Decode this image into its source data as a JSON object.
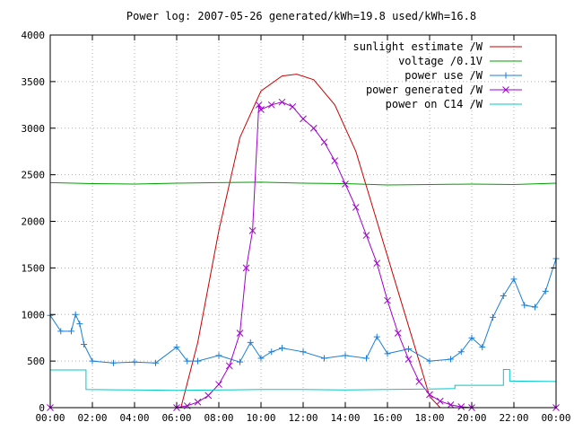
{
  "chart_data": {
    "type": "line",
    "title": "Power log: 2007-05-26 generated/kWh=19.8 used/kWh=16.8",
    "xlabel": "",
    "ylabel": "",
    "xlim": [
      0,
      24
    ],
    "ylim": [
      0,
      4000
    ],
    "x_ticks": [
      "00:00",
      "02:00",
      "04:00",
      "06:00",
      "08:00",
      "10:00",
      "12:00",
      "14:00",
      "16:00",
      "18:00",
      "20:00",
      "22:00",
      "00:00"
    ],
    "y_ticks": [
      0,
      500,
      1000,
      1500,
      2000,
      2500,
      3000,
      3500,
      4000
    ],
    "grid": true,
    "legend_position": "top-right",
    "series": [
      {
        "name": "sunlight estimate /W",
        "color": "#cc0000",
        "marker": "none",
        "x": [
          6.2,
          7.0,
          8.0,
          9.0,
          10.0,
          11.0,
          11.7,
          12.5,
          13.5,
          14.5,
          15.5,
          16.5,
          17.5,
          18.0,
          18.5
        ],
        "y": [
          0,
          700,
          1900,
          2900,
          3400,
          3560,
          3580,
          3520,
          3250,
          2750,
          2000,
          1250,
          500,
          120,
          0
        ]
      },
      {
        "name": "voltage /0.1V",
        "color": "#00a000",
        "marker": "none",
        "x": [
          0,
          2,
          4,
          6,
          8,
          10,
          12,
          14,
          16,
          18,
          20,
          22,
          24
        ],
        "y": [
          2415,
          2405,
          2400,
          2410,
          2415,
          2420,
          2410,
          2405,
          2390,
          2395,
          2400,
          2395,
          2410
        ]
      },
      {
        "name": "power use /W",
        "color": "#1a7fd6",
        "marker": "plus",
        "x": [
          0,
          0.5,
          1.0,
          1.2,
          1.4,
          1.6,
          2.0,
          3.0,
          4.0,
          5.0,
          6.0,
          6.5,
          7.0,
          8.0,
          9.0,
          9.5,
          10.0,
          10.5,
          11.0,
          12.0,
          13.0,
          14.0,
          15.0,
          15.5,
          16.0,
          17.0,
          18.0,
          19.0,
          19.5,
          20.0,
          20.5,
          21.0,
          21.5,
          22.0,
          22.5,
          23.0,
          23.5,
          24.0
        ],
        "y": [
          990,
          820,
          820,
          1000,
          900,
          680,
          500,
          480,
          490,
          480,
          650,
          500,
          500,
          560,
          490,
          700,
          530,
          600,
          640,
          600,
          530,
          560,
          530,
          760,
          580,
          630,
          500,
          520,
          600,
          750,
          650,
          970,
          1200,
          1380,
          1100,
          1080,
          1250,
          1600
        ]
      },
      {
        "name": "power generated /W",
        "color": "#a000d0",
        "marker": "x",
        "x": [
          0,
          6.0,
          6.5,
          7.0,
          7.5,
          8.0,
          8.5,
          9.0,
          9.3,
          9.6,
          9.9,
          10.0,
          10.5,
          11.0,
          11.5,
          12.0,
          12.5,
          13.0,
          13.5,
          14.0,
          14.5,
          15.0,
          15.5,
          16.0,
          16.5,
          17.0,
          17.5,
          18.0,
          18.5,
          19.0,
          19.5,
          20.0,
          24.0
        ],
        "y": [
          0,
          0,
          20,
          60,
          130,
          250,
          450,
          800,
          1500,
          1900,
          3250,
          3200,
          3250,
          3280,
          3230,
          3100,
          3000,
          2850,
          2650,
          2400,
          2150,
          1850,
          1550,
          1150,
          800,
          520,
          280,
          140,
          70,
          30,
          10,
          0,
          0
        ]
      },
      {
        "name": "power on C14 /W",
        "color": "#00c8c8",
        "marker": "none",
        "x": [
          0,
          1.7,
          1.7,
          4.0,
          6.0,
          8.0,
          10.0,
          12.0,
          14.0,
          16.0,
          18.0,
          19.2,
          19.2,
          21.5,
          21.5,
          21.8,
          21.8,
          24.0
        ],
        "y": [
          405,
          405,
          195,
          190,
          185,
          190,
          195,
          195,
          190,
          195,
          200,
          205,
          240,
          240,
          410,
          410,
          285,
          280
        ]
      }
    ]
  }
}
